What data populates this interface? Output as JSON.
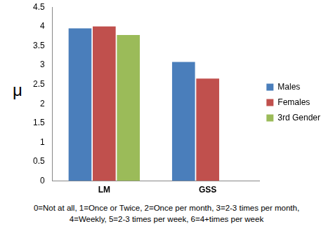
{
  "chart_data": {
    "type": "bar",
    "y_label": "μ",
    "categories": [
      "LM",
      "GSS"
    ],
    "series": [
      {
        "name": "Males",
        "color": "#4a7ebb",
        "values": [
          3.95,
          3.08
        ]
      },
      {
        "name": "Females",
        "color": "#c0504d",
        "values": [
          4.0,
          2.65
        ]
      },
      {
        "name": "3rd Gender",
        "color": "#9bbb59",
        "values": [
          3.78,
          null
        ]
      }
    ],
    "ylim": [
      0,
      4.5
    ],
    "yticks": [
      0,
      0.5,
      1,
      1.5,
      2,
      2.5,
      3,
      3.5,
      4,
      4.5
    ],
    "grid": false,
    "legend": "right",
    "annotations": [
      "0=Not at all, 1=Once or Twice, 2=Once per month, 3=2-3 times per month,",
      "4=Weekly, 5=2-3 times per week, 6=4+times per week"
    ]
  }
}
